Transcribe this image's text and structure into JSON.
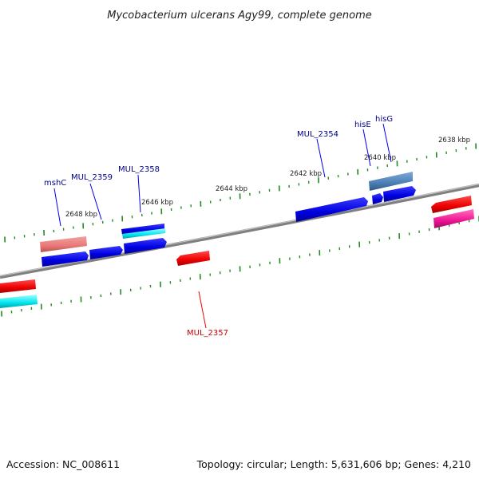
{
  "title": "Mycobacterium ulcerans Agy99, complete genome",
  "footer": {
    "accession": "Accession: NC_008611",
    "summary": "Topology: circular; Length: 5,631,606 bp; Genes: 4,210"
  },
  "scale_labels": [
    "2648 kbp",
    "2646 kbp",
    "2644 kbp",
    "2642 kbp",
    "2640 kbp",
    "2638 kbp"
  ],
  "gene_labels": [
    "mshC",
    "MUL_2359",
    "MUL_2358",
    "MUL_2354",
    "hisE",
    "hisG",
    "MUL_2357"
  ],
  "colors": {
    "backbone": "#808080",
    "tick": "#228B22",
    "forward_gene": "#0000EE",
    "reverse_gene": "#EE0000",
    "label_forward": "#00008B",
    "label_reverse": "#CC0000",
    "salmon": "#E87878",
    "cyan": "#00E5EE",
    "steel_blue": "#4A7FB5",
    "magenta": "#EE1493"
  }
}
